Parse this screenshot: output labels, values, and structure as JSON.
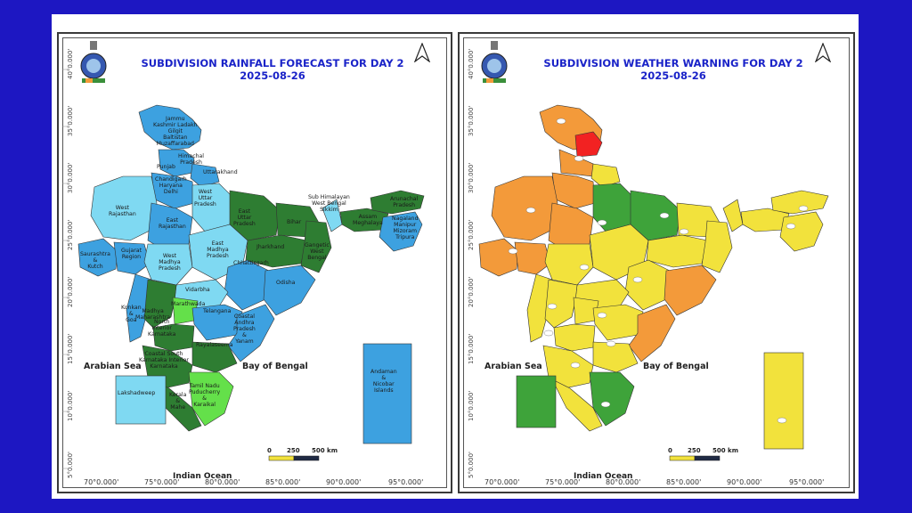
{
  "left_map": {
    "title_line1": "SUBDIVISION RAINFALL FORECAST FOR DAY 2",
    "title_line2": "2025-08-26",
    "regions": [
      {
        "id": "jk",
        "label": "Jammu\nKashmir Ladakh\nGilgit\nBaltistan\nMuzaffarabad"
      },
      {
        "id": "hp",
        "label": "Himachal\nPradesh"
      },
      {
        "id": "punjab",
        "label": "Punjab"
      },
      {
        "id": "uk",
        "label": "Uttarakhand"
      },
      {
        "id": "chd",
        "label": "Chandigarh\nHaryana\nDelhi"
      },
      {
        "id": "wup",
        "label": "West\nUttar\nPradesh"
      },
      {
        "id": "eup",
        "label": "East\nUttar\nPradesh"
      },
      {
        "id": "bihar",
        "label": "Bihar"
      },
      {
        "id": "shwb",
        "label": "Sub Himalayan\nWest Bengal\nSikkim"
      },
      {
        "id": "arunachal",
        "label": "Arunachal\nPradesh"
      },
      {
        "id": "assam",
        "label": "Assam\nMeghalaya"
      },
      {
        "id": "nmmt",
        "label": "Nagaland\nManipur\nMizoram\nTripura"
      },
      {
        "id": "wraj",
        "label": "West\nRajasthan"
      },
      {
        "id": "eraj",
        "label": "East\nRajasthan"
      },
      {
        "id": "saur",
        "label": "Saurashtra\n&\nKutch"
      },
      {
        "id": "guj",
        "label": "Gujarat\nRegion"
      },
      {
        "id": "wmp",
        "label": "West\nMadhya\nPradesh"
      },
      {
        "id": "emp",
        "label": "East\nMadhya\nPradesh"
      },
      {
        "id": "jhar",
        "label": "Jharkhand"
      },
      {
        "id": "gwb",
        "label": "Gangetic\nWest\nBengal"
      },
      {
        "id": "chh",
        "label": "Chhattisgarh"
      },
      {
        "id": "odisha",
        "label": "Odisha"
      },
      {
        "id": "vid",
        "label": "Vidarbha"
      },
      {
        "id": "mar",
        "label": "Marathwada"
      },
      {
        "id": "konkan",
        "label": "Konkan\n&\nGoa"
      },
      {
        "id": "mmh",
        "label": "Madhya\nMaharashtra"
      },
      {
        "id": "tel",
        "label": "Telangana"
      },
      {
        "id": "nik",
        "label": "North\nInterior\nKarnataka"
      },
      {
        "id": "cap",
        "label": "Coastal\nAndhra\nPradesh\n&\nYanam"
      },
      {
        "id": "ray",
        "label": "Rayalaseema"
      },
      {
        "id": "cka",
        "label": "Coastal South\nKarnataka Interior\nKarnataka"
      },
      {
        "id": "tn",
        "label": "Tamil Nadu\nPuducherry\n&\nKaraikal"
      },
      {
        "id": "kerala",
        "label": "Kerala\n&\nMahe"
      },
      {
        "id": "lak",
        "label": "Lakshadweep"
      },
      {
        "id": "an",
        "label": "Andaman\n&\nNicobar\nIslands"
      }
    ]
  },
  "right_map": {
    "title_line1": "SUBDIVISION WEATHER WARNING FOR DAY 2",
    "title_line2": "2025-08-26"
  },
  "labels": {
    "arabian_sea": "Arabian Sea",
    "bay_of_bengal": "Bay of Bengal",
    "indian_ocean": "Indian Ocean"
  },
  "latitudes": [
    "40°0.000'",
    "35°0.000'",
    "30°0.000'",
    "25°0.000'",
    "20°0.000'",
    "15°0.000'",
    "10°0.000'",
    "5°0.000'"
  ],
  "longitudes": [
    "70°0.000'",
    "75°0.000'",
    "80°0.000'",
    "85°0.000'",
    "90°0.000'",
    "95°0.000'"
  ],
  "scale": {
    "zero": "0",
    "mid": "250",
    "end": "500 km"
  },
  "colors": {
    "frame": "#1d17c2",
    "title": "#1a23c8",
    "rain_light": "#7fd9f2",
    "rain_moderate": "#3da1e0",
    "rain_heavy": "#2e7d32",
    "rain_bright": "#64e04a",
    "warn_orange": "#f39a3a",
    "warn_yellow": "#f2e23c",
    "warn_green": "#3ea33a",
    "warn_red": "#f22222"
  }
}
